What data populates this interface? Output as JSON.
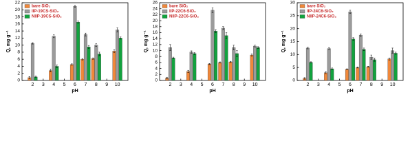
{
  "chart_data": [
    {
      "type": "bar",
      "xlabel": "pH",
      "ylabel": "Q, mg g⁻¹",
      "x": [
        2,
        4,
        6,
        7,
        8,
        10
      ],
      "xlim": [
        1,
        11
      ],
      "xticks": [
        2,
        3,
        4,
        5,
        6,
        7,
        8,
        9,
        10
      ],
      "ylim": [
        0,
        22
      ],
      "yticks": [
        0,
        2,
        4,
        6,
        8,
        10,
        12,
        14,
        16,
        18,
        20,
        22
      ],
      "legend": "upper left",
      "series": [
        {
          "name": "bare SiO₂",
          "color": "#f0883a",
          "values": [
            0.8,
            2.8,
            4.5,
            6,
            6.2,
            8.3
          ],
          "errors": [
            0.3,
            0.4,
            0.2,
            0.2,
            0.2,
            0.4
          ]
        },
        {
          "name": "IIP-19CS-SiO₂",
          "color": "#9b9b9b",
          "values": [
            10.5,
            12.5,
            21,
            13,
            10,
            14.3
          ],
          "errors": [
            0.2,
            0.4,
            0.3,
            0.4,
            0.4,
            0.6
          ]
        },
        {
          "name": "NIIP-19CS-SiO₂",
          "color": "#12a23e",
          "values": [
            1,
            4,
            16.5,
            9.5,
            7.5,
            12
          ],
          "errors": [
            0.2,
            0.4,
            0.3,
            0.4,
            0.5,
            0.3
          ]
        }
      ]
    },
    {
      "type": "bar",
      "xlabel": "pH",
      "ylabel": "Q, mg g⁻¹",
      "x": [
        2,
        4,
        6,
        7,
        8,
        10
      ],
      "xlim": [
        1,
        11
      ],
      "xticks": [
        2,
        3,
        4,
        5,
        6,
        7,
        8,
        9,
        10
      ],
      "ylim": [
        0,
        26
      ],
      "yticks": [
        0,
        2,
        4,
        6,
        8,
        10,
        12,
        14,
        16,
        18,
        20,
        22,
        24,
        26
      ],
      "legend": "upper left",
      "series": [
        {
          "name": "bare SiO₂",
          "color": "#f0883a",
          "values": [
            0.8,
            3,
            5.5,
            6,
            6.2,
            8.5
          ],
          "errors": [
            0.3,
            0.4,
            0.2,
            0.2,
            0.2,
            0.4
          ]
        },
        {
          "name": "IIP-22C6-SiO₂",
          "color": "#9b9b9b",
          "values": [
            11,
            9.5,
            23.5,
            17.5,
            11,
            11.5
          ],
          "errors": [
            1,
            0.4,
            0.8,
            0.5,
            0.8,
            0.3
          ]
        },
        {
          "name": "NIIP-22C6-SiO₂",
          "color": "#12a23e",
          "values": [
            7.5,
            9,
            16.5,
            15,
            9,
            11
          ],
          "errors": [
            0.3,
            0.3,
            0.5,
            1,
            1,
            0.3
          ]
        }
      ]
    },
    {
      "type": "bar",
      "xlabel": "pH",
      "ylabel": "Q, mg g⁻¹",
      "x": [
        2,
        4,
        6,
        7,
        8,
        10
      ],
      "xlim": [
        1,
        11
      ],
      "xticks": [
        2,
        3,
        4,
        5,
        6,
        7,
        8,
        9,
        10
      ],
      "ylim": [
        0,
        30
      ],
      "yticks": [
        0,
        5,
        10,
        15,
        20,
        25,
        30
      ],
      "legend": "upper left",
      "series": [
        {
          "name": "bare SiO₂",
          "color": "#f0883a",
          "values": [
            0.8,
            3,
            4.3,
            5,
            5.3,
            8.3
          ],
          "errors": [
            0.3,
            0.4,
            0.2,
            0.2,
            0.2,
            0.4
          ]
        },
        {
          "name": "IIP-24C6-SiO₂",
          "color": "#9b9b9b",
          "values": [
            12.5,
            12.3,
            26.5,
            17.5,
            9,
            11.5
          ],
          "errors": [
            0.3,
            0.4,
            0.6,
            0.5,
            0.8,
            1
          ]
        },
        {
          "name": "NIIP-24C6-SiO₂",
          "color": "#12a23e",
          "values": [
            7,
            4.5,
            16,
            12,
            8,
            10.5
          ],
          "errors": [
            0.2,
            0.3,
            0.5,
            0.5,
            0.6,
            0.4
          ]
        }
      ]
    }
  ]
}
